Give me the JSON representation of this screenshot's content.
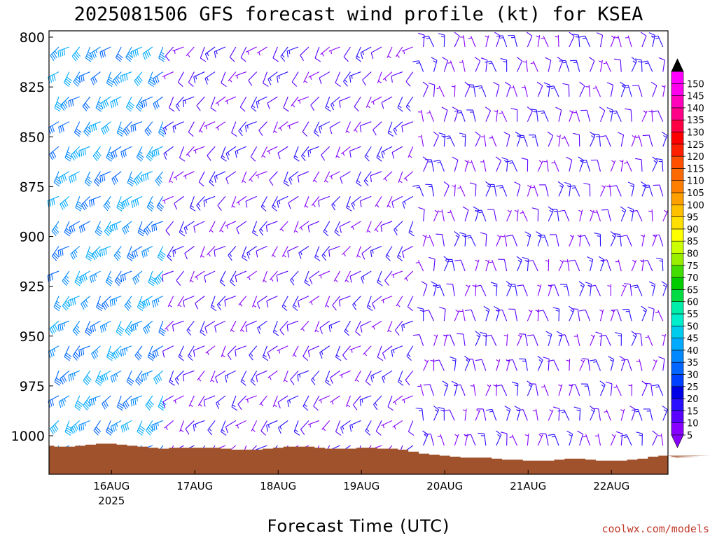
{
  "title": "2025081506 GFS forecast wind profile (kt) for KSEA",
  "xlabel": "Forecast Time (UTC)",
  "credit": "coolwx.com/models",
  "chart_data": {
    "type": "wind-barb-time-height",
    "title": "2025081506 GFS forecast wind profile (kt) for KSEA",
    "xlabel": "Forecast Time (UTC)",
    "ylabel": "",
    "units": "kt",
    "x_start": "2025-08-15T06Z",
    "x_end": "2025-08-22T15Z",
    "y_levels_hpa": [
      800,
      825,
      850,
      875,
      900,
      925,
      950,
      975,
      1000
    ],
    "y_range_hpa": [
      795,
      1020
    ],
    "x_ticks": [
      {
        "label": "16AUG",
        "sub": "2025",
        "time": "2025-08-16T00Z"
      },
      {
        "label": "17AUG",
        "sub": "",
        "time": "2025-08-17T00Z"
      },
      {
        "label": "18AUG",
        "sub": "",
        "time": "2025-08-18T00Z"
      },
      {
        "label": "19AUG",
        "sub": "",
        "time": "2025-08-19T00Z"
      },
      {
        "label": "20AUG",
        "sub": "",
        "time": "2025-08-20T00Z"
      },
      {
        "label": "21AUG",
        "sub": "",
        "time": "2025-08-21T00Z"
      },
      {
        "label": "22AUG",
        "sub": "",
        "time": "2025-08-22T00Z"
      }
    ],
    "barb_levels_hpa": [
      800,
      812.5,
      825,
      837.5,
      850,
      862.5,
      875,
      887.5,
      900,
      912.5,
      925,
      937.5,
      950,
      962.5,
      975,
      987.5,
      1000,
      1012.5
    ],
    "barb_time_step_hours": 3,
    "wind_regimes": [
      {
        "period": "15AUG06Z-16AUG12Z",
        "direction": "southwest",
        "speed_kt": [
          30,
          40
        ]
      },
      {
        "period": "16AUG12Z-19AUG12Z",
        "direction": "southwest",
        "speed_kt": [
          5,
          15
        ]
      },
      {
        "period": "19AUG12Z-22AUG15Z",
        "direction": "north",
        "speed_kt": [
          5,
          15
        ]
      }
    ],
    "surface_pressure_hpa": [
      1005,
      1005.5,
      1005.5,
      1005,
      1004.5,
      1004,
      1004,
      1004.5,
      1005,
      1005.5,
      1006,
      1006.5,
      1006,
      1006,
      1006,
      1006,
      1006,
      1006.5,
      1007,
      1007,
      1007,
      1006.5,
      1006,
      1005.5,
      1005.5,
      1005.5,
      1006,
      1006.5,
      1006.5,
      1006.5,
      1006,
      1006,
      1006.5,
      1006.5,
      1007,
      1008,
      1009,
      1009.5,
      1010,
      1010.5,
      1011,
      1011,
      1011,
      1011.5,
      1012,
      1012,
      1012.5,
      1012.5,
      1012.5,
      1012,
      1011.5,
      1011.5,
      1012,
      1012.5,
      1012.5,
      1012.5,
      1012,
      1011.5,
      1010.5,
      1010,
      1010,
      1011,
      1011,
      1010.5,
      1010,
      1010,
      1010
    ],
    "colorbar": {
      "labels": [
        5,
        10,
        15,
        20,
        25,
        30,
        35,
        40,
        45,
        50,
        55,
        60,
        65,
        70,
        75,
        80,
        85,
        90,
        95,
        100,
        105,
        110,
        115,
        120,
        125,
        130,
        135,
        140,
        145,
        150
      ],
      "colors": [
        "#8800ff",
        "#5a00ff",
        "#2a10ff",
        "#0000e6",
        "#0040ff",
        "#0066ff",
        "#0088ff",
        "#00aaff",
        "#00ccee",
        "#00eecc",
        "#00eeaa",
        "#00dd44",
        "#00cc00",
        "#44dd00",
        "#99ee00",
        "#ccff00",
        "#ffff00",
        "#ffe000",
        "#ffc000",
        "#ffa000",
        "#ff8000",
        "#ff6a00",
        "#ff5000",
        "#ff2000",
        "#ff0000",
        "#ff0044",
        "#ff0088",
        "#ff00bb",
        "#ff00ee",
        "#ff00ff"
      ],
      "under_color": "#8800ff",
      "over_color": "#000000"
    },
    "ground_color": "#a0522d"
  }
}
